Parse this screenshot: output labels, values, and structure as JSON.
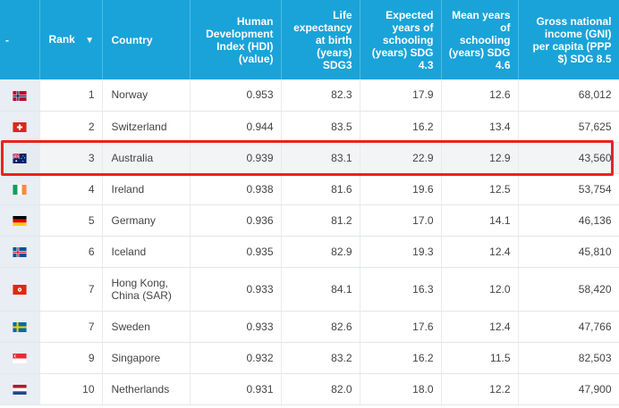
{
  "headers": {
    "flag": "-",
    "rank": "Rank",
    "rank_sort_icon": "sort-down-icon",
    "country": "Country",
    "hdi": [
      "Human",
      "Development",
      "Index (HDI)",
      "(value)"
    ],
    "life": [
      "Life",
      "expectancy",
      "at birth",
      "(years)",
      "SDG3"
    ],
    "expected": [
      "Expected",
      "years of",
      "schooling",
      "(years) SDG",
      "4.3"
    ],
    "mean": [
      "Mean years",
      "of",
      "schooling",
      "(years) SDG",
      "4.6"
    ],
    "gni": [
      "Gross national",
      "income (GNI)",
      "per capita (PPP",
      "$) SDG 8.5"
    ]
  },
  "rows": [
    {
      "flag": "norway-flag",
      "rank": "1",
      "country": "Norway",
      "hdi": "0.953",
      "life": "82.3",
      "expected": "17.9",
      "mean": "12.6",
      "gni": "68,012"
    },
    {
      "flag": "switzerland-flag",
      "rank": "2",
      "country": "Switzerland",
      "hdi": "0.944",
      "life": "83.5",
      "expected": "16.2",
      "mean": "13.4",
      "gni": "57,625"
    },
    {
      "flag": "australia-flag",
      "rank": "3",
      "country": "Australia",
      "hdi": "0.939",
      "life": "83.1",
      "expected": "22.9",
      "mean": "12.9",
      "gni": "43,560"
    },
    {
      "flag": "ireland-flag",
      "rank": "4",
      "country": "Ireland",
      "hdi": "0.938",
      "life": "81.6",
      "expected": "19.6",
      "mean": "12.5",
      "gni": "53,754"
    },
    {
      "flag": "germany-flag",
      "rank": "5",
      "country": "Germany",
      "hdi": "0.936",
      "life": "81.2",
      "expected": "17.0",
      "mean": "14.1",
      "gni": "46,136"
    },
    {
      "flag": "iceland-flag",
      "rank": "6",
      "country": "Iceland",
      "hdi": "0.935",
      "life": "82.9",
      "expected": "19.3",
      "mean": "12.4",
      "gni": "45,810"
    },
    {
      "flag": "hong-kong-flag",
      "rank": "7",
      "country_lines": [
        "Hong Kong,",
        "China (SAR)"
      ],
      "hdi": "0.933",
      "life": "84.1",
      "expected": "16.3",
      "mean": "12.0",
      "gni": "58,420"
    },
    {
      "flag": "sweden-flag",
      "rank": "7",
      "country": "Sweden",
      "hdi": "0.933",
      "life": "82.6",
      "expected": "17.6",
      "mean": "12.4",
      "gni": "47,766"
    },
    {
      "flag": "singapore-flag",
      "rank": "9",
      "country": "Singapore",
      "hdi": "0.932",
      "life": "83.2",
      "expected": "16.2",
      "mean": "11.5",
      "gni": "82,503"
    },
    {
      "flag": "netherlands-flag",
      "rank": "10",
      "country": "Netherlands",
      "hdi": "0.931",
      "life": "82.0",
      "expected": "18.0",
      "mean": "12.2",
      "gni": "47,900"
    }
  ],
  "highlight": {
    "row_index": 2,
    "color": "#e8231f"
  },
  "colors": {
    "header_bg": "#1aa3d8",
    "header_text": "#ffffff",
    "flag_col_bg": "#e9edf4"
  }
}
